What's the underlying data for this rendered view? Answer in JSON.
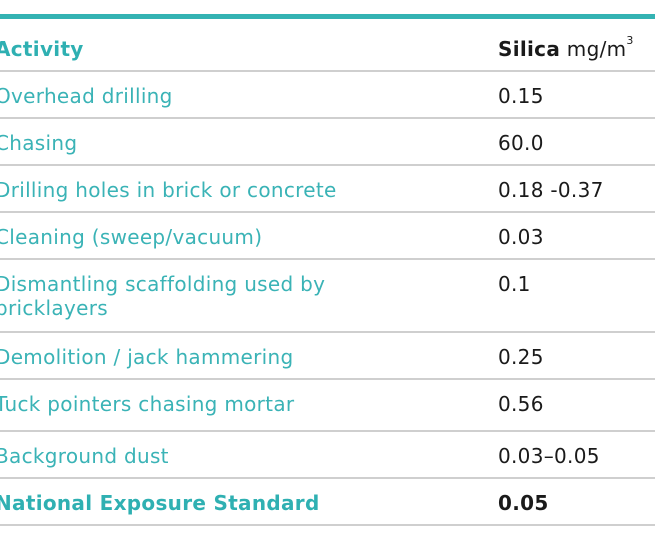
{
  "table": {
    "header": {
      "activity": "Activity",
      "silica_bold": "Silica",
      "silica_unit": "mg/m",
      "silica_unit_sup": "3"
    },
    "rows": [
      {
        "activity": "Overhead drilling",
        "silica": "0.15"
      },
      {
        "activity": "Chasing",
        "silica": "60.0"
      },
      {
        "activity": "Drilling holes in brick or concrete",
        "silica": "0.18 -0.37"
      },
      {
        "activity": "Cleaning (sweep/vacuum)",
        "silica": "0.03"
      },
      {
        "activity": "Dismantling scaffolding used by bricklayers",
        "silica": "0.1"
      },
      {
        "activity": "Demolition / jack hammering",
        "silica": "0.25"
      },
      {
        "activity": "Tuck pointers chasing mortar",
        "silica": "0.56"
      },
      {
        "activity": "Background dust",
        "silica": "0.03–0.05"
      }
    ],
    "standard": {
      "activity": "National Exposure Standard",
      "silica": "0.05"
    }
  },
  "colors": {
    "accent": "#34b3b3",
    "activity_text": "#3ab3b6",
    "value_text": "#1a1a1a",
    "divider": "#cfcfcf"
  }
}
